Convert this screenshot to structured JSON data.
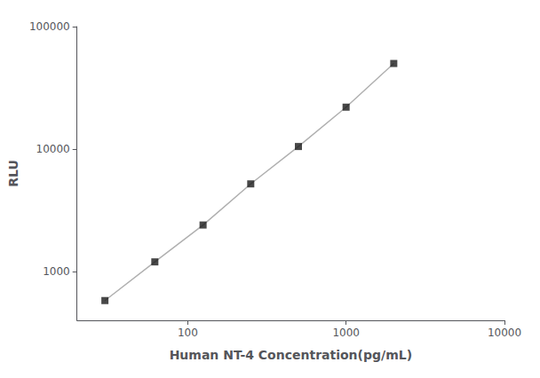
{
  "chart_data": {
    "type": "line",
    "xlabel": "Human NT-4 Concentration(pg/mL)",
    "ylabel": "RLU",
    "x": [
      30,
      62,
      125,
      250,
      500,
      1000,
      2000
    ],
    "series": [
      {
        "type": "line",
        "color": "#b0b0b0",
        "values": [
          580,
          1200,
          2400,
          5200,
          10500,
          22000,
          50000
        ]
      },
      {
        "type": "scatter",
        "color": "#1a1a1a",
        "marker": "square",
        "values": [
          580,
          1200,
          2400,
          5200,
          10500,
          22000,
          50000
        ]
      }
    ],
    "xlim": [
      20,
      10000
    ],
    "ylim": [
      400,
      100000
    ],
    "xticks": [
      100,
      1000,
      10000
    ],
    "yticks": [
      1000,
      10000,
      100000
    ],
    "log": true,
    "grid": false
  }
}
